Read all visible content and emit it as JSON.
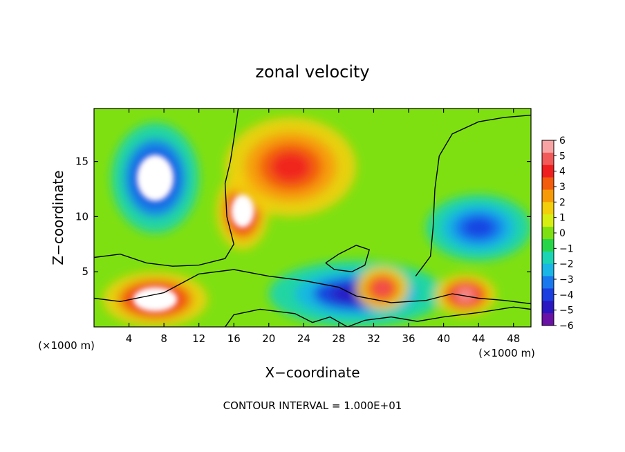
{
  "chart_data": {
    "type": "heatmap",
    "title": "zonal velocity",
    "xlabel": "X−coordinate",
    "ylabel": "Z−coordinate",
    "x_unit_label": "(×1000 m)",
    "x_unit_label_right": "(×1000 m)",
    "footer": "CONTOUR INTERVAL = 1.000E+01",
    "xlim": [
      0,
      50
    ],
    "ylim": [
      0,
      19.8
    ],
    "x_ticks": [
      4,
      8,
      12,
      16,
      20,
      24,
      28,
      32,
      36,
      40,
      44,
      48
    ],
    "y_ticks": [
      5,
      10,
      15
    ],
    "colorbar": {
      "range": [
        -6,
        6
      ],
      "tick_labels": [
        "6",
        "5",
        "4",
        "3",
        "2",
        "1",
        "0",
        "−1",
        "−2",
        "−3",
        "−4",
        "−5",
        "−6"
      ],
      "colors": [
        "#f7a3a3",
        "#f25a5a",
        "#ef1f1f",
        "#f25c0c",
        "#f79a08",
        "#f2cf0a",
        "#d7ee12",
        "#7ee011",
        "#27d648",
        "#1bd4b4",
        "#1ab6e6",
        "#1a78ee",
        "#1a3ee0",
        "#2a17c2",
        "#6a11a6"
      ]
    },
    "field_features": [
      {
        "kind": "blob",
        "sign": "negative",
        "x": [
          2,
          12
        ],
        "z": [
          8.5,
          18.5
        ],
        "peak": -6,
        "saturated": true
      },
      {
        "kind": "blob",
        "sign": "positive",
        "x": [
          14,
          20
        ],
        "z": [
          7,
          14
        ],
        "peak": 6,
        "saturated": true
      },
      {
        "kind": "band",
        "sign": "positive",
        "x": [
          15,
          30
        ],
        "z": [
          10,
          19
        ],
        "peak": 4
      },
      {
        "kind": "blob",
        "sign": "positive",
        "x": [
          1,
          13
        ],
        "z": [
          0,
          5
        ],
        "peak": 6,
        "saturated": true
      },
      {
        "kind": "band",
        "sign": "negative",
        "x": [
          20,
          40
        ],
        "z": [
          0,
          6
        ],
        "peak": -5
      },
      {
        "kind": "blob",
        "sign": "positive",
        "x": [
          30,
          36
        ],
        "z": [
          1.5,
          5.5
        ],
        "peak": 5
      },
      {
        "kind": "blob",
        "sign": "positive",
        "x": [
          39,
          46
        ],
        "z": [
          1,
          4.8
        ],
        "peak": 6
      },
      {
        "kind": "band",
        "sign": "negative",
        "x": [
          38,
          50
        ],
        "z": [
          6,
          12
        ],
        "peak": -4
      }
    ]
  }
}
